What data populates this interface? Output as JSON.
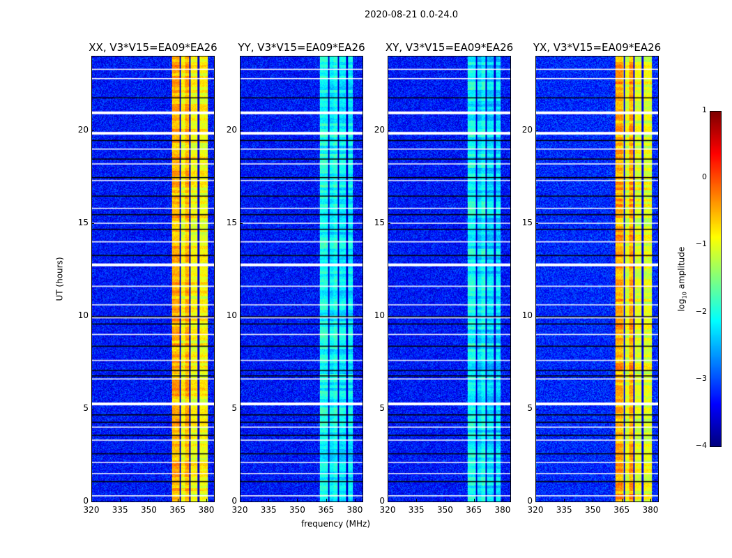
{
  "chart_data": {
    "type": "heatmap",
    "title": "2020-08-21 0.0-24.0",
    "xlabel": "frequency (MHz)",
    "ylabel": "UT (hours)",
    "xlim": [
      320,
      384.4
    ],
    "ylim": [
      0,
      24
    ],
    "xticks": [
      320,
      335,
      350,
      365,
      380
    ],
    "yticks": [
      0,
      5,
      10,
      15,
      20
    ],
    "colormap": "jet",
    "colorbar": {
      "label": "log10 amplitude",
      "label_main": "log",
      "label_sub": "10",
      "label_tail": " amplitude",
      "range": [
        -4,
        1
      ],
      "ticks": [
        1,
        0,
        -1,
        -2,
        -3,
        -4
      ],
      "tick_labels": [
        "1",
        "0",
        "−1",
        "−2",
        "−3",
        "−4"
      ]
    },
    "flagged_hours_white": [
      0.3,
      1.5,
      2.1,
      3.3,
      4.0,
      5.3,
      6.6,
      7.6,
      9.0,
      9.9,
      10.6,
      11.6,
      12.8,
      14.0,
      15.0,
      15.8,
      17.3,
      18.2,
      19.0,
      19.9,
      21.0,
      22.8,
      23.3
    ],
    "flagged_hours_black": [
      1.1,
      2.6,
      3.6,
      4.3,
      4.7,
      6.8,
      7.1,
      8.4,
      9.6,
      10.0,
      13.3,
      14.7,
      15.5,
      16.5,
      17.5,
      18.5,
      19.5,
      21.8
    ],
    "panels": [
      {
        "title": "XX, V3*V15=EA09*EA26",
        "background": -3.3,
        "band": [
          362,
          381
        ],
        "band_level": -0.9,
        "band_peak": -0.4
      },
      {
        "title": "YY, V3*V15=EA09*EA26",
        "background": -3.3,
        "band": [
          361.5,
          379
        ],
        "band_level": -2.2,
        "band_peak": -2.0
      },
      {
        "title": "XY, V3*V15=EA09*EA26",
        "background": -3.3,
        "band": [
          361.5,
          379
        ],
        "band_level": -2.3,
        "band_peak": -2.0
      },
      {
        "title": "YX, V3*V15=EA09*EA26",
        "background": -3.2,
        "band": [
          361.5,
          381
        ],
        "band_level": -1.0,
        "band_peak": -0.3
      }
    ],
    "gap_channels_mhz": [
      366.5,
      371.5,
      376
    ]
  }
}
